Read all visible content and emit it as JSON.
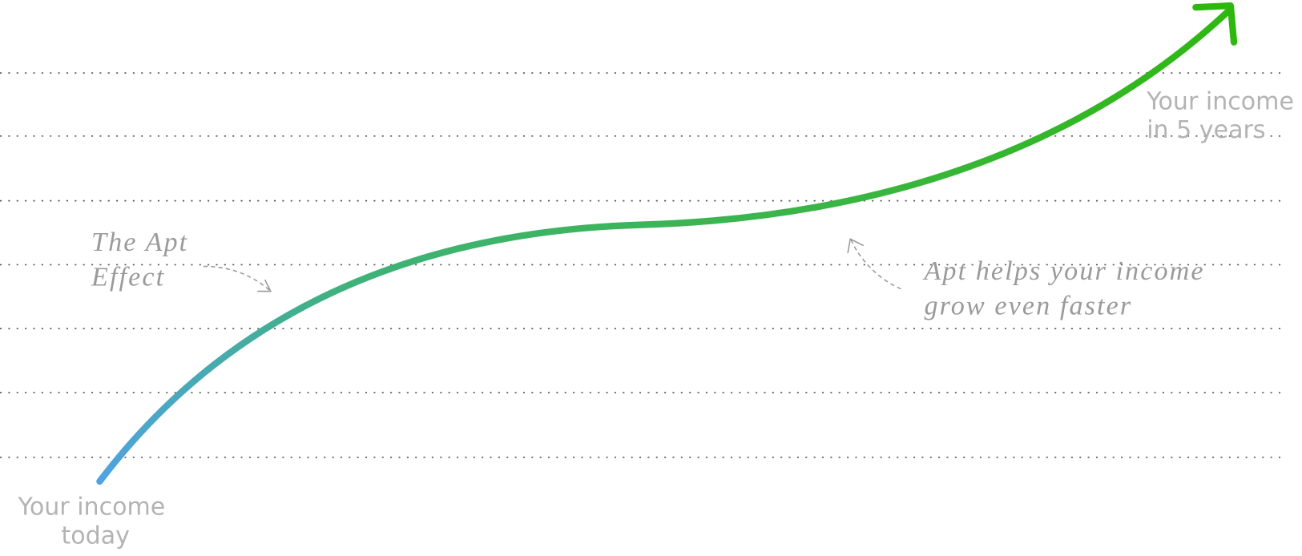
{
  "labels": {
    "start": [
      "Your income",
      "today"
    ],
    "end": [
      "Your income",
      "in 5 years"
    ],
    "apt_effect": [
      "The Apt",
      "Effect"
    ],
    "faster": [
      "Apt helps your income",
      "grow even faster"
    ]
  }
}
